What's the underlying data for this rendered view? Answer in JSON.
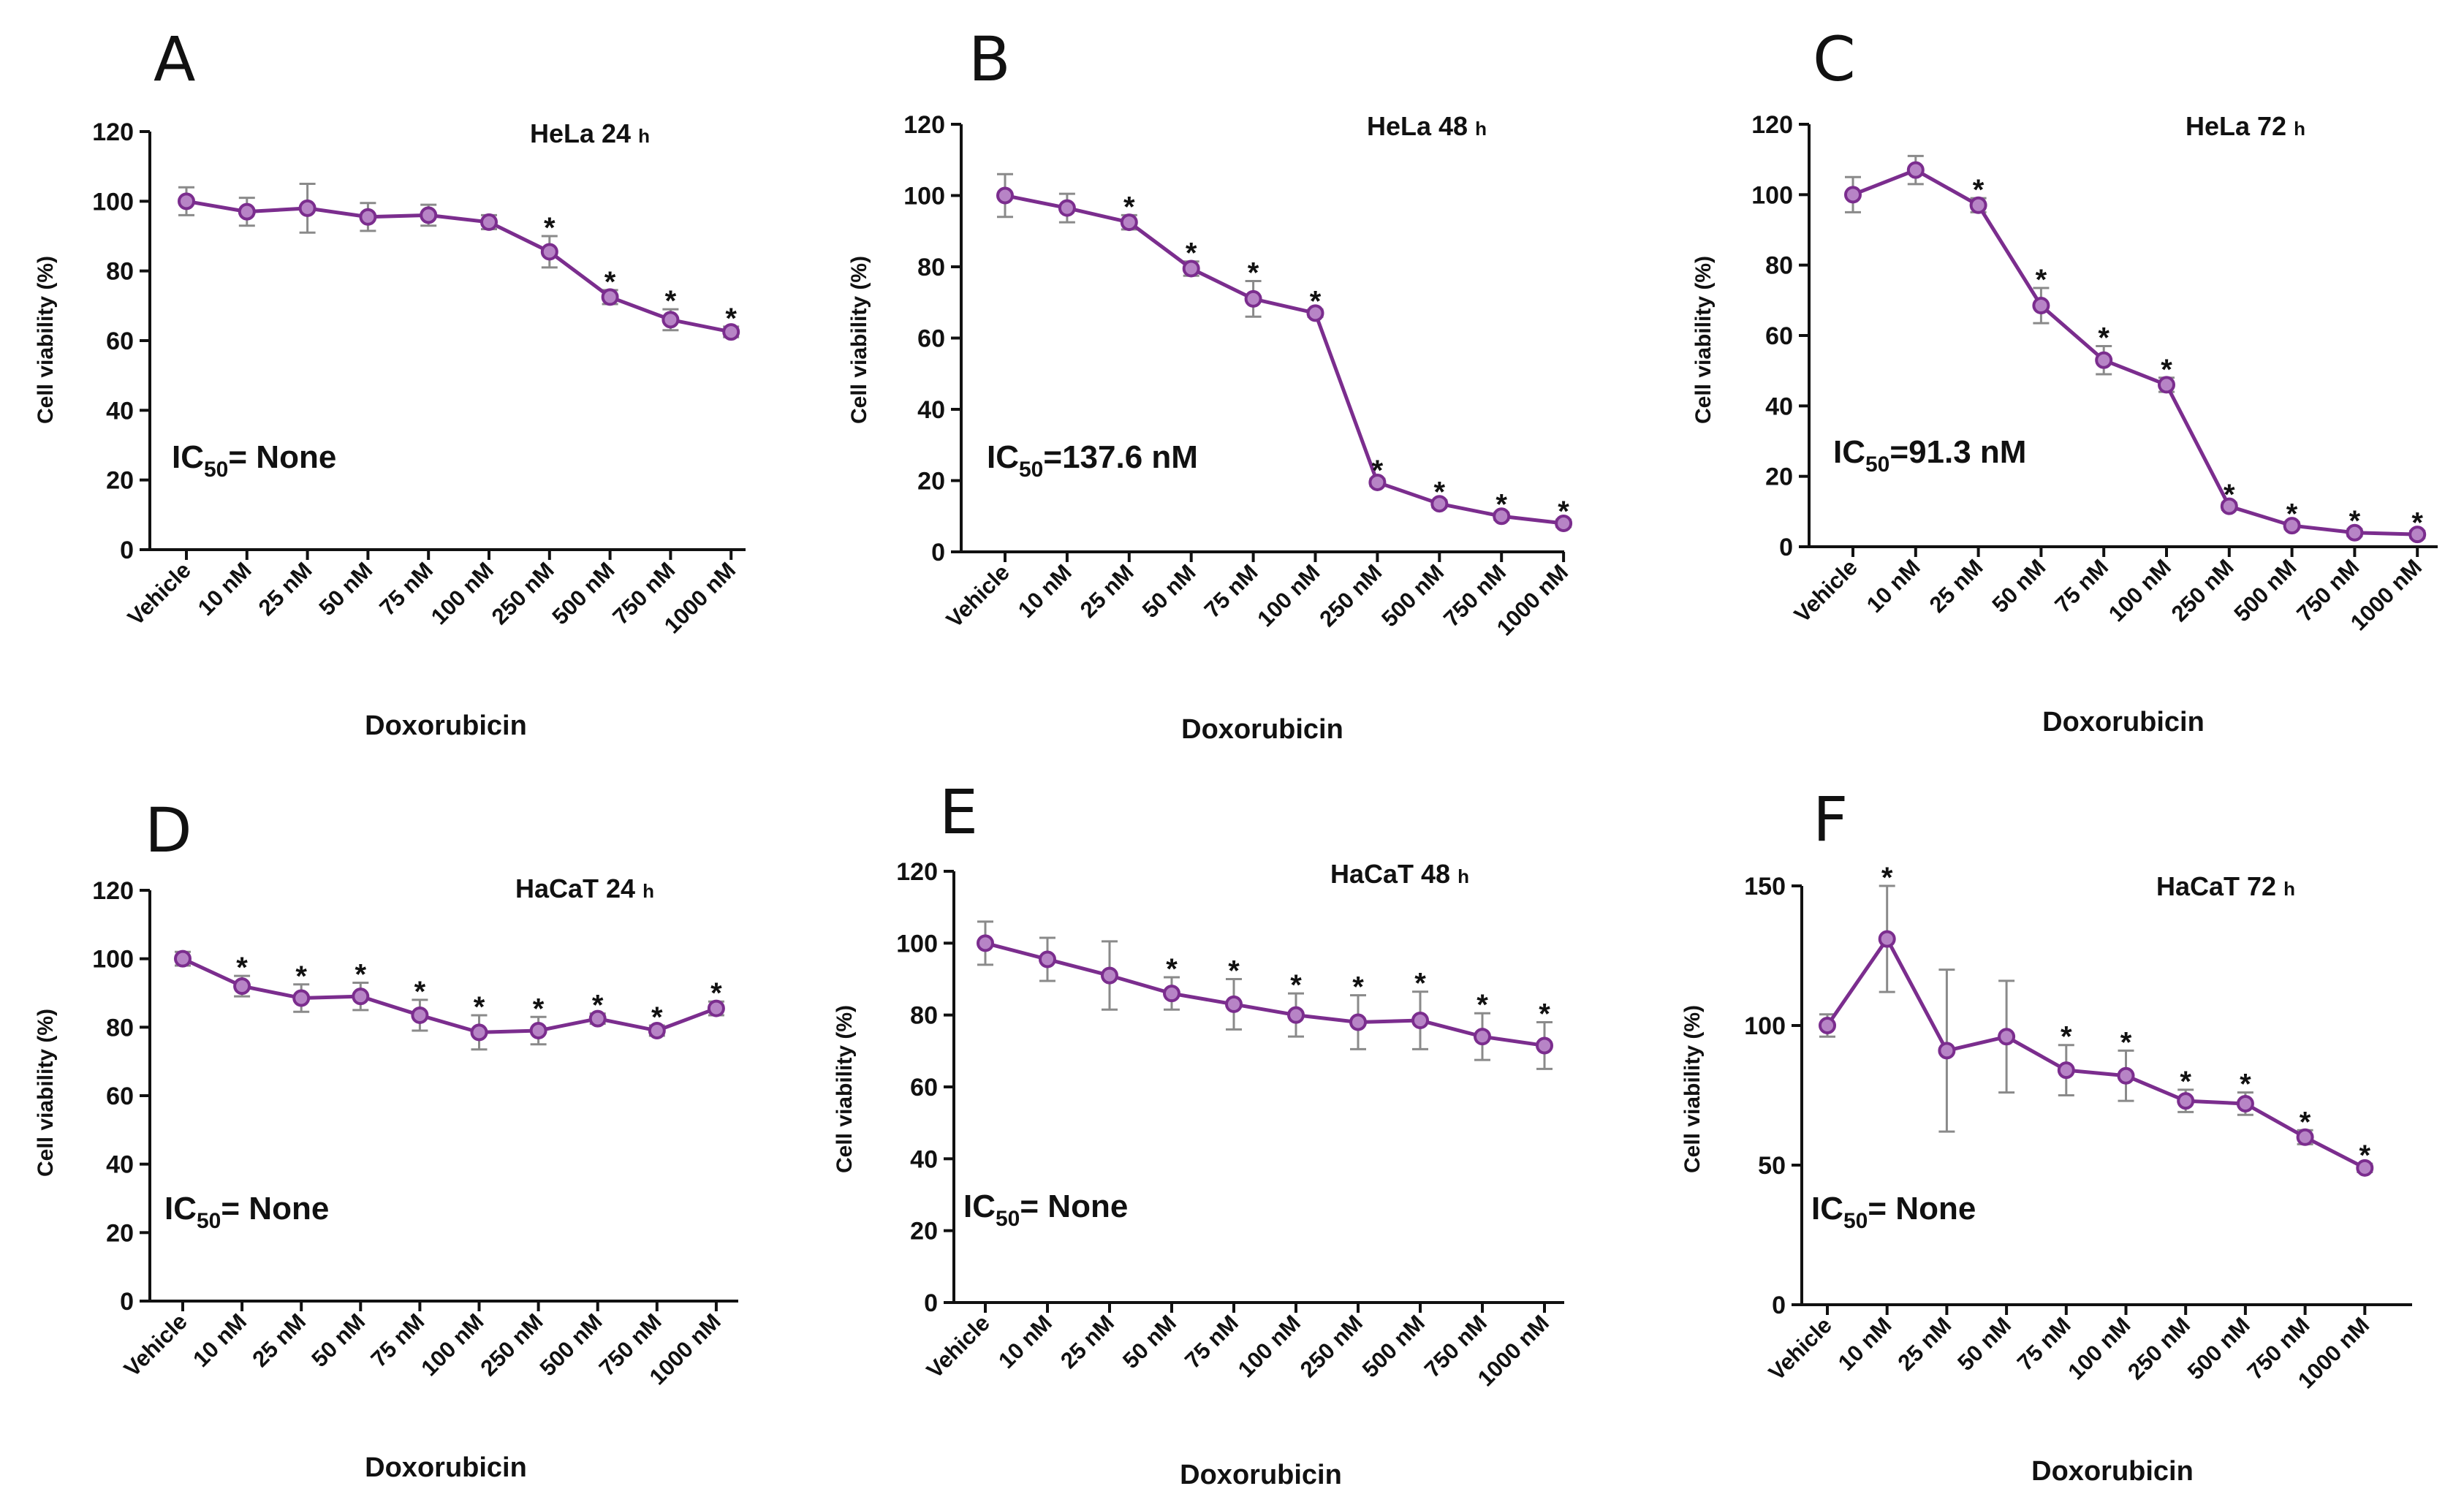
{
  "colors": {
    "series": "#7b2d8e",
    "errorbar": "#8a8a8a",
    "axis": "#111111"
  },
  "chart_data": [
    {
      "letter": "A",
      "type": "line",
      "title": "HeLa 24",
      "title_unit": "h",
      "xlabel": "Doxorubicin",
      "ylabel": "Cell viability   (%)",
      "ylim": [
        0,
        120
      ],
      "yticks": [
        "0",
        "20",
        "40",
        "60",
        "80",
        "100",
        "120"
      ],
      "categories": [
        "Vehicle",
        "10 nM",
        "25 nM",
        "50 nM",
        "75 nM",
        "100 nM",
        "250 nM",
        "500 nM",
        "750 nM",
        "1000 nM"
      ],
      "values": [
        100,
        97,
        98,
        95.5,
        96,
        94,
        85.5,
        72.5,
        66,
        62.5
      ],
      "errors": [
        4,
        4,
        7,
        4,
        3,
        2,
        4.5,
        2,
        3,
        1.5
      ],
      "significant": [
        false,
        false,
        false,
        false,
        false,
        false,
        true,
        true,
        true,
        true
      ],
      "ic50_prefix": "IC",
      "ic50_sub": "50",
      "ic50_value": "= None"
    },
    {
      "letter": "B",
      "type": "line",
      "title": "HeLa 48",
      "title_unit": "h",
      "xlabel": "Doxorubicin",
      "ylabel": "Cell viability   (%)",
      "ylim": [
        0,
        120
      ],
      "yticks": [
        "0",
        "20",
        "40",
        "60",
        "80",
        "100",
        "120"
      ],
      "categories": [
        "Vehicle",
        "10 nM",
        "25 nM",
        "50 nM",
        "75 nM",
        "100 nM",
        "250 nM",
        "500 nM",
        "750 nM",
        "1000 nM"
      ],
      "values": [
        100,
        96.5,
        92.5,
        79.5,
        71,
        67,
        19.5,
        13.5,
        10,
        8
      ],
      "errors": [
        6,
        4,
        2,
        2,
        5,
        1,
        1,
        1,
        1,
        1
      ],
      "significant": [
        false,
        false,
        true,
        true,
        true,
        true,
        true,
        true,
        true,
        true
      ],
      "ic50_prefix": "IC",
      "ic50_sub": "50",
      "ic50_value": "=137.6 nM"
    },
    {
      "letter": "C",
      "type": "line",
      "title": "HeLa 72",
      "title_unit": "h",
      "xlabel": "Doxorubicin",
      "ylabel": "Cell viability  (%)",
      "ylim": [
        0,
        120
      ],
      "yticks": [
        "0",
        "20",
        "40",
        "60",
        "80",
        "100",
        "120"
      ],
      "categories": [
        "Vehicle",
        "10 nM",
        "25 nM",
        "50 nM",
        "75 nM",
        "100 nM",
        "250 nM",
        "500 nM",
        "750 nM",
        "1000 nM"
      ],
      "values": [
        100,
        107,
        97,
        68.5,
        53,
        46,
        11.5,
        6,
        4,
        3.5
      ],
      "errors": [
        5,
        4,
        2,
        5,
        4,
        2,
        1,
        1,
        1,
        1
      ],
      "significant": [
        false,
        false,
        true,
        true,
        true,
        true,
        true,
        true,
        true,
        true
      ],
      "ic50_prefix": "IC",
      "ic50_sub": "50",
      "ic50_value": "=91.3 nM"
    },
    {
      "letter": "D",
      "type": "line",
      "title": "HaCaT 24",
      "title_unit": "h",
      "xlabel": "Doxorubicin",
      "ylabel": "Cell viability   (%)",
      "ylim": [
        0,
        120
      ],
      "yticks": [
        "0",
        "20",
        "40",
        "60",
        "80",
        "100",
        "120"
      ],
      "categories": [
        "Vehicle",
        "10 nM",
        "25 nM",
        "50 nM",
        "75 nM",
        "100 nM",
        "250 nM",
        "500 nM",
        "750 nM",
        "1000 nM"
      ],
      "values": [
        100,
        92,
        88.5,
        89,
        83.5,
        78.5,
        79,
        82.5,
        79,
        85.5
      ],
      "errors": [
        2,
        3,
        4,
        4,
        4.5,
        5,
        4,
        1.5,
        1.5,
        2
      ],
      "significant": [
        false,
        true,
        true,
        true,
        true,
        true,
        true,
        true,
        true,
        true
      ],
      "ic50_prefix": "IC",
      "ic50_sub": "50",
      "ic50_value": "= None"
    },
    {
      "letter": "E",
      "type": "line",
      "title": "HaCaT 48",
      "title_unit": "h",
      "xlabel": "Doxorubicin",
      "ylabel": "Cell viability   (%)",
      "ylim": [
        0,
        120
      ],
      "yticks": [
        "0",
        "20",
        "40",
        "60",
        "80",
        "100",
        "120"
      ],
      "categories": [
        "Vehicle",
        "10 nM",
        "25 nM",
        "50 nM",
        "75 nM",
        "100 nM",
        "250 nM",
        "500 nM",
        "750 nM",
        "1000 nM"
      ],
      "values": [
        100,
        95.5,
        91,
        86,
        83,
        80,
        78,
        78.5,
        74,
        71.5
      ],
      "errors": [
        6,
        6,
        9.5,
        4.5,
        7,
        6,
        7.5,
        8,
        6.5,
        6.5
      ],
      "significant": [
        false,
        false,
        false,
        true,
        true,
        true,
        true,
        true,
        true,
        true
      ],
      "ic50_prefix": "IC",
      "ic50_sub": "50",
      "ic50_value": "= None"
    },
    {
      "letter": "F",
      "type": "line",
      "title": "HaCaT 72",
      "title_unit": "h",
      "xlabel": "Doxorubicin",
      "ylabel": "Cell viability   (%)",
      "ylim": [
        0,
        150
      ],
      "yticks": [
        "0",
        "50",
        "100",
        "150"
      ],
      "categories": [
        "Vehicle",
        "10 nM",
        "25 nM",
        "50 nM",
        "75 nM",
        "100 nM",
        "250 nM",
        "500 nM",
        "750 nM",
        "1000 nM"
      ],
      "values": [
        100,
        131,
        91,
        96,
        84,
        82,
        73,
        72,
        60,
        49
      ],
      "errors": [
        4,
        19,
        29,
        20,
        9,
        9,
        4,
        4,
        2.5,
        1.5
      ],
      "significant": [
        false,
        true,
        false,
        false,
        true,
        true,
        true,
        true,
        true,
        true
      ],
      "ic50_prefix": "IC",
      "ic50_sub": "50",
      "ic50_value": "= None"
    }
  ]
}
